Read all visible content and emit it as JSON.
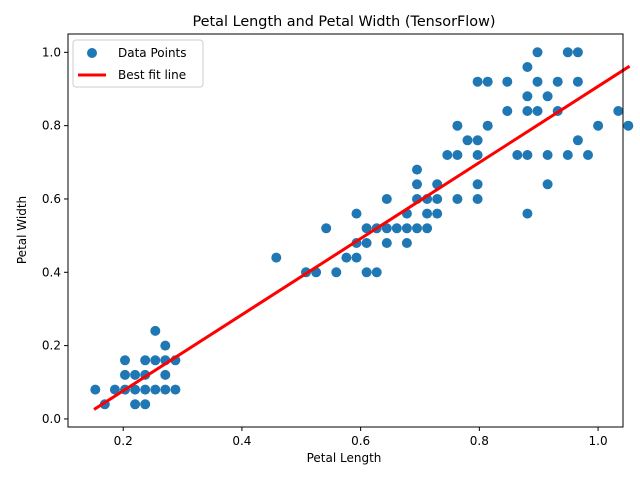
{
  "chart_data": {
    "type": "scatter",
    "title": "Petal Length and Petal Width (TensorFlow)",
    "xlabel": "Petal Length",
    "ylabel": "Petal Width",
    "xlim": [
      0.107,
      1.042
    ],
    "ylim": [
      -0.022,
      1.05
    ],
    "xticks": [
      0.2,
      0.4,
      0.6,
      0.8,
      1.0
    ],
    "xtick_labels": [
      "0.2",
      "0.4",
      "0.6",
      "0.8",
      "1.0"
    ],
    "yticks": [
      0.0,
      0.2,
      0.4,
      0.6,
      0.8,
      1.0
    ],
    "ytick_labels": [
      "0.0",
      "0.2",
      "0.4",
      "0.6",
      "0.8",
      "1.0"
    ],
    "grid": false,
    "legend_position": "upper-left",
    "series": [
      {
        "name": "Data Points",
        "kind": "scatter",
        "color": "#1f77b4",
        "points": [
          [
            0.153,
            0.08
          ],
          [
            0.169,
            0.04
          ],
          [
            0.186,
            0.08
          ],
          [
            0.203,
            0.08
          ],
          [
            0.203,
            0.12
          ],
          [
            0.203,
            0.16
          ],
          [
            0.22,
            0.12
          ],
          [
            0.22,
            0.08
          ],
          [
            0.22,
            0.04
          ],
          [
            0.237,
            0.16
          ],
          [
            0.237,
            0.08
          ],
          [
            0.237,
            0.04
          ],
          [
            0.237,
            0.12
          ],
          [
            0.254,
            0.24
          ],
          [
            0.254,
            0.16
          ],
          [
            0.254,
            0.08
          ],
          [
            0.271,
            0.2
          ],
          [
            0.271,
            0.16
          ],
          [
            0.271,
            0.12
          ],
          [
            0.271,
            0.08
          ],
          [
            0.288,
            0.16
          ],
          [
            0.288,
            0.08
          ],
          [
            0.458,
            0.44
          ],
          [
            0.508,
            0.4
          ],
          [
            0.525,
            0.4
          ],
          [
            0.542,
            0.52
          ],
          [
            0.559,
            0.4
          ],
          [
            0.576,
            0.44
          ],
          [
            0.593,
            0.56
          ],
          [
            0.593,
            0.48
          ],
          [
            0.593,
            0.44
          ],
          [
            0.61,
            0.52
          ],
          [
            0.61,
            0.48
          ],
          [
            0.61,
            0.4
          ],
          [
            0.627,
            0.52
          ],
          [
            0.627,
            0.4
          ],
          [
            0.644,
            0.6
          ],
          [
            0.644,
            0.52
          ],
          [
            0.644,
            0.48
          ],
          [
            0.661,
            0.52
          ],
          [
            0.678,
            0.56
          ],
          [
            0.678,
            0.52
          ],
          [
            0.678,
            0.48
          ],
          [
            0.695,
            0.68
          ],
          [
            0.695,
            0.64
          ],
          [
            0.695,
            0.6
          ],
          [
            0.695,
            0.52
          ],
          [
            0.712,
            0.6
          ],
          [
            0.712,
            0.56
          ],
          [
            0.712,
            0.52
          ],
          [
            0.729,
            0.64
          ],
          [
            0.729,
            0.6
          ],
          [
            0.729,
            0.56
          ],
          [
            0.746,
            0.72
          ],
          [
            0.763,
            0.8
          ],
          [
            0.763,
            0.72
          ],
          [
            0.763,
            0.6
          ],
          [
            0.78,
            0.76
          ],
          [
            0.797,
            0.92
          ],
          [
            0.797,
            0.76
          ],
          [
            0.797,
            0.72
          ],
          [
            0.797,
            0.64
          ],
          [
            0.797,
            0.6
          ],
          [
            0.814,
            0.92
          ],
          [
            0.814,
            0.8
          ],
          [
            0.847,
            0.92
          ],
          [
            0.847,
            0.84
          ],
          [
            0.864,
            0.72
          ],
          [
            0.881,
            0.96
          ],
          [
            0.881,
            0.88
          ],
          [
            0.881,
            0.84
          ],
          [
            0.881,
            0.72
          ],
          [
            0.881,
            0.56
          ],
          [
            0.898,
            1.0
          ],
          [
            0.898,
            0.92
          ],
          [
            0.898,
            0.84
          ],
          [
            0.915,
            0.88
          ],
          [
            0.915,
            0.72
          ],
          [
            0.915,
            0.64
          ],
          [
            0.932,
            0.92
          ],
          [
            0.932,
            0.84
          ],
          [
            0.949,
            1.0
          ],
          [
            0.949,
            0.72
          ],
          [
            0.966,
            1.0
          ],
          [
            0.966,
            0.92
          ],
          [
            0.966,
            0.76
          ],
          [
            0.983,
            0.72
          ],
          [
            1.0,
            0.8
          ],
          [
            1.034,
            0.84
          ],
          [
            1.051,
            0.8
          ]
        ]
      },
      {
        "name": "Best fit line",
        "kind": "line",
        "color": "#ff0000",
        "points": [
          [
            0.153,
            0.028
          ],
          [
            1.051,
            0.96
          ]
        ]
      }
    ]
  }
}
